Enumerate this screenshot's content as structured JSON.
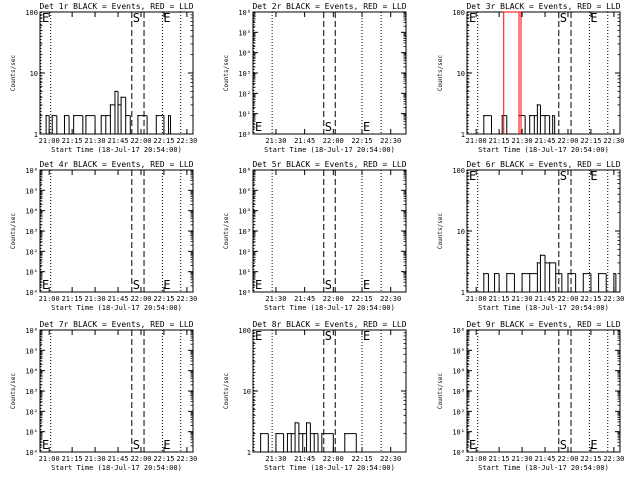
{
  "chart_data": [
    {
      "type": "line",
      "title": "Det 1r BLACK = Events, RED = LLD",
      "ylabel": "Counts/sec",
      "xlabel": "Start Time (18-Jul-17 20:54:00)",
      "yscale": "log",
      "ylim": [
        1,
        100
      ],
      "y_ticks": [
        "1",
        "10",
        "100"
      ],
      "xlim": [
        "20:54",
        "22:34"
      ],
      "x_ticks": [
        "21:00",
        "21:15",
        "21:30",
        "21:45",
        "22:00",
        "22:15",
        "22:30"
      ],
      "markers": [
        {
          "label": "E",
          "time": "20:54",
          "style": "dotted"
        },
        {
          "label": "",
          "time": "21:01",
          "style": "dotted"
        },
        {
          "label": "S",
          "time": "21:54",
          "style": "dashed"
        },
        {
          "label": "",
          "time": "22:02",
          "style": "dashed"
        },
        {
          "label": "E",
          "time": "22:14",
          "style": "dotted"
        },
        {
          "label": "",
          "time": "22:26",
          "style": "dotted"
        }
      ],
      "marker_label_pos": "top",
      "series": [
        {
          "color": "#000000",
          "x": [
            "20:54",
            "20:58",
            "21:00",
            "21:02",
            "21:05",
            "21:10",
            "21:13",
            "21:16",
            "21:22",
            "21:24",
            "21:30",
            "21:34",
            "21:37",
            "21:40",
            "21:43",
            "21:45",
            "21:47",
            "21:50",
            "21:53",
            "21:58",
            "22:04",
            "22:10",
            "22:15",
            "22:18"
          ],
          "y": [
            1,
            2,
            1,
            2,
            1,
            2,
            1,
            2,
            1,
            2,
            1,
            2,
            2,
            3,
            5,
            3,
            4,
            2,
            1,
            2,
            1,
            2,
            1,
            2
          ]
        }
      ]
    },
    {
      "type": "line",
      "title": "Det 2r BLACK = Events, RED = LLD",
      "ylabel": "Counts/sec",
      "xlabel": "Start Time (18-Jul-17 20:54:00)",
      "yscale": "log",
      "ylim": [
        1,
        1000000
      ],
      "y_ticks": [
        "10⁰",
        "10¹",
        "10²",
        "10³",
        "10⁴",
        "10⁵",
        "10⁶"
      ],
      "xlim": [
        "21:18",
        "22:38"
      ],
      "x_ticks": [
        "21:30",
        "21:45",
        "22:00",
        "22:15",
        "22:30"
      ],
      "markers": [
        {
          "label": "E",
          "time": "21:18",
          "style": "dotted"
        },
        {
          "label": "",
          "time": "21:28",
          "style": "dotted"
        },
        {
          "label": "S",
          "time": "21:55",
          "style": "dashed"
        },
        {
          "label": "",
          "time": "22:01",
          "style": "dashed"
        },
        {
          "label": "E",
          "time": "22:15",
          "style": "dotted"
        },
        {
          "label": "",
          "time": "22:25",
          "style": "dotted"
        }
      ],
      "marker_label_pos": "bottom",
      "series": []
    },
    {
      "type": "line",
      "title": "Det 3r BLACK = Events, RED = LLD",
      "ylabel": "Counts/sec",
      "xlabel": "Start Time (18-Jul-17 20:54:00)",
      "yscale": "log",
      "ylim": [
        1,
        100
      ],
      "y_ticks": [
        "1",
        "10",
        "100"
      ],
      "xlim": [
        "20:54",
        "22:34"
      ],
      "x_ticks": [
        "21:00",
        "21:15",
        "21:30",
        "21:45",
        "22:00",
        "22:15",
        "22:30"
      ],
      "markers": [
        {
          "label": "E",
          "time": "20:54",
          "style": "dotted"
        },
        {
          "label": "",
          "time": "21:01",
          "style": "dotted"
        },
        {
          "label": "S",
          "time": "21:54",
          "style": "dashed"
        },
        {
          "label": "",
          "time": "22:02",
          "style": "dashed"
        },
        {
          "label": "E",
          "time": "22:14",
          "style": "dotted"
        },
        {
          "label": "",
          "time": "22:26",
          "style": "dotted"
        }
      ],
      "marker_label_pos": "top",
      "series": [
        {
          "color": "#000000",
          "x": [
            "20:54",
            "21:05",
            "21:10",
            "21:15",
            "21:17",
            "21:20",
            "21:25",
            "21:28",
            "21:32",
            "21:35",
            "21:38",
            "21:40",
            "21:42",
            "21:45",
            "21:48",
            "21:50"
          ],
          "y": [
            1,
            2,
            1,
            1,
            2,
            1,
            1,
            2,
            1,
            2,
            2,
            3,
            2,
            2,
            1,
            2
          ]
        },
        {
          "color": "#ff0000",
          "x": [
            "21:18",
            "21:28"
          ],
          "y": [
            100,
            100
          ]
        }
      ]
    },
    {
      "type": "line",
      "title": "Det 4r BLACK = Events, RED = LLD",
      "ylabel": "Counts/sec",
      "xlabel": "Start Time (18-Jul-17 20:54:00)",
      "yscale": "log",
      "ylim": [
        1,
        1000000
      ],
      "y_ticks": [
        "10⁰",
        "10¹",
        "10²",
        "10³",
        "10⁴",
        "10⁵",
        "10⁶"
      ],
      "xlim": [
        "20:54",
        "22:34"
      ],
      "x_ticks": [
        "21:00",
        "21:15",
        "21:30",
        "21:45",
        "22:00",
        "22:15",
        "22:30"
      ],
      "markers": [
        {
          "label": "E",
          "time": "20:54",
          "style": "dotted"
        },
        {
          "label": "",
          "time": "21:01",
          "style": "dotted"
        },
        {
          "label": "S",
          "time": "21:54",
          "style": "dashed"
        },
        {
          "label": "",
          "time": "22:02",
          "style": "dashed"
        },
        {
          "label": "E",
          "time": "22:14",
          "style": "dotted"
        },
        {
          "label": "",
          "time": "22:26",
          "style": "dotted"
        }
      ],
      "marker_label_pos": "bottom",
      "series": []
    },
    {
      "type": "line",
      "title": "Det 5r BLACK = Events, RED = LLD",
      "ylabel": "Counts/sec",
      "xlabel": "Start Time (18-Jul-17 20:54:00)",
      "yscale": "log",
      "ylim": [
        1,
        1000000
      ],
      "y_ticks": [
        "10⁰",
        "10¹",
        "10²",
        "10³",
        "10⁴",
        "10⁵",
        "10⁶"
      ],
      "xlim": [
        "21:18",
        "22:38"
      ],
      "x_ticks": [
        "21:30",
        "21:45",
        "22:00",
        "22:15",
        "22:30"
      ],
      "markers": [
        {
          "label": "E",
          "time": "21:18",
          "style": "dotted"
        },
        {
          "label": "",
          "time": "21:28",
          "style": "dotted"
        },
        {
          "label": "S",
          "time": "21:55",
          "style": "dashed"
        },
        {
          "label": "",
          "time": "22:01",
          "style": "dashed"
        },
        {
          "label": "E",
          "time": "22:15",
          "style": "dotted"
        },
        {
          "label": "",
          "time": "22:25",
          "style": "dotted"
        }
      ],
      "marker_label_pos": "bottom",
      "series": []
    },
    {
      "type": "line",
      "title": "Det 6r BLACK = Events, RED = LLD",
      "ylabel": "Counts/sec",
      "xlabel": "Start Time (18-Jul-17 20:54:00)",
      "yscale": "log",
      "ylim": [
        1,
        100
      ],
      "y_ticks": [
        "1",
        "10",
        "100"
      ],
      "xlim": [
        "20:54",
        "22:34"
      ],
      "x_ticks": [
        "21:00",
        "21:15",
        "21:30",
        "21:45",
        "22:00",
        "22:15",
        "22:30"
      ],
      "markers": [
        {
          "label": "E",
          "time": "20:54",
          "style": "dotted"
        },
        {
          "label": "",
          "time": "21:01",
          "style": "dotted"
        },
        {
          "label": "S",
          "time": "21:54",
          "style": "dashed"
        },
        {
          "label": "",
          "time": "22:02",
          "style": "dashed"
        },
        {
          "label": "E",
          "time": "22:14",
          "style": "dotted"
        },
        {
          "label": "",
          "time": "22:26",
          "style": "dotted"
        }
      ],
      "marker_label_pos": "top",
      "series": [
        {
          "color": "#000000",
          "x": [
            "21:02",
            "21:05",
            "21:08",
            "21:12",
            "21:15",
            "21:20",
            "21:25",
            "21:30",
            "21:35",
            "21:40",
            "21:42",
            "21:45",
            "21:48",
            "21:52",
            "21:56",
            "22:00",
            "22:05",
            "22:10",
            "22:15",
            "22:20",
            "22:25",
            "22:30"
          ],
          "y": [
            1,
            2,
            1,
            2,
            1,
            2,
            1,
            2,
            2,
            3,
            4,
            3,
            3,
            2,
            1,
            2,
            1,
            2,
            1,
            2,
            1,
            2
          ]
        }
      ]
    },
    {
      "type": "line",
      "title": "Det 7r BLACK = Events, RED = LLD",
      "ylabel": "Counts/sec",
      "xlabel": "Start Time (18-Jul-17 20:54:00)",
      "yscale": "log",
      "ylim": [
        1,
        1000000
      ],
      "y_ticks": [
        "10⁰",
        "10¹",
        "10²",
        "10³",
        "10⁴",
        "10⁵",
        "10⁶"
      ],
      "xlim": [
        "20:54",
        "22:34"
      ],
      "x_ticks": [
        "21:00",
        "21:15",
        "21:30",
        "21:45",
        "22:00",
        "22:15",
        "22:30"
      ],
      "markers": [
        {
          "label": "E",
          "time": "20:54",
          "style": "dotted"
        },
        {
          "label": "",
          "time": "21:01",
          "style": "dotted"
        },
        {
          "label": "S",
          "time": "21:54",
          "style": "dashed"
        },
        {
          "label": "",
          "time": "22:02",
          "style": "dashed"
        },
        {
          "label": "E",
          "time": "22:14",
          "style": "dotted"
        },
        {
          "label": "",
          "time": "22:26",
          "style": "dotted"
        }
      ],
      "marker_label_pos": "bottom",
      "series": []
    },
    {
      "type": "line",
      "title": "Det 8r BLACK = Events, RED = LLD",
      "ylabel": "Counts/sec",
      "xlabel": "Start Time (18-Jul-17 20:54:00)",
      "yscale": "log",
      "ylim": [
        1,
        100
      ],
      "y_ticks": [
        "1",
        "10",
        "100"
      ],
      "xlim": [
        "21:18",
        "22:38"
      ],
      "x_ticks": [
        "21:30",
        "21:45",
        "22:00",
        "22:15",
        "22:30"
      ],
      "markers": [
        {
          "label": "E",
          "time": "21:18",
          "style": "dotted"
        },
        {
          "label": "",
          "time": "21:28",
          "style": "dotted"
        },
        {
          "label": "S",
          "time": "21:55",
          "style": "dashed"
        },
        {
          "label": "",
          "time": "22:01",
          "style": "dashed"
        },
        {
          "label": "E",
          "time": "22:15",
          "style": "dotted"
        },
        {
          "label": "",
          "time": "22:25",
          "style": "dotted"
        }
      ],
      "marker_label_pos": "top",
      "series": [
        {
          "color": "#000000",
          "x": [
            "21:18",
            "21:22",
            "21:26",
            "21:30",
            "21:34",
            "21:36",
            "21:38",
            "21:40",
            "21:42",
            "21:44",
            "21:46",
            "21:48",
            "21:50",
            "21:52",
            "21:54",
            "22:00",
            "22:06",
            "22:12"
          ],
          "y": [
            1,
            2,
            1,
            2,
            1,
            2,
            2,
            3,
            2,
            2,
            3,
            2,
            2,
            1,
            2,
            1,
            2,
            1
          ]
        }
      ]
    },
    {
      "type": "line",
      "title": "Det 9r BLACK = Events, RED = LLD",
      "ylabel": "Counts/sec",
      "xlabel": "Start Time (18-Jul-17 20:54:00)",
      "yscale": "log",
      "ylim": [
        1,
        1000000
      ],
      "y_ticks": [
        "10⁰",
        "10¹",
        "10²",
        "10³",
        "10⁴",
        "10⁵",
        "10⁶"
      ],
      "xlim": [
        "20:54",
        "22:34"
      ],
      "x_ticks": [
        "21:00",
        "21:15",
        "21:30",
        "21:45",
        "22:00",
        "22:15",
        "22:30"
      ],
      "markers": [
        {
          "label": "E",
          "time": "20:54",
          "style": "dotted"
        },
        {
          "label": "",
          "time": "21:01",
          "style": "dotted"
        },
        {
          "label": "S",
          "time": "21:54",
          "style": "dashed"
        },
        {
          "label": "",
          "time": "22:02",
          "style": "dashed"
        },
        {
          "label": "E",
          "time": "22:14",
          "style": "dotted"
        },
        {
          "label": "",
          "time": "22:26",
          "style": "dotted"
        }
      ],
      "marker_label_pos": "bottom",
      "series": []
    }
  ]
}
